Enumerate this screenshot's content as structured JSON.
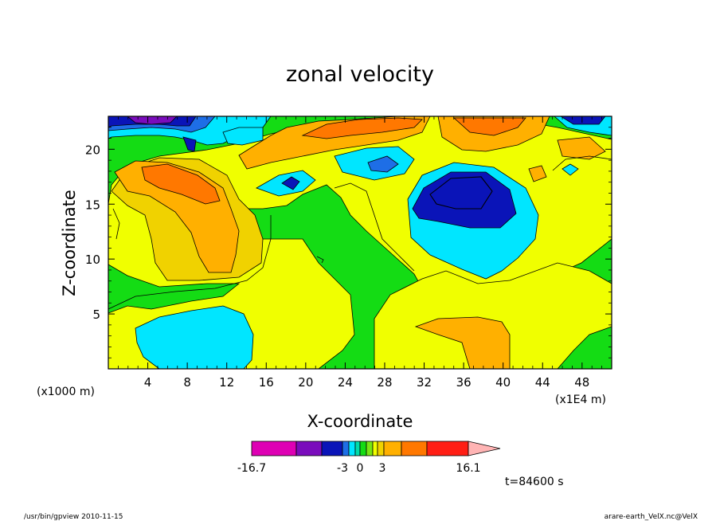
{
  "chart_data": {
    "type": "heatmap",
    "subtype": "filled contour",
    "title": "zonal velocity",
    "xlabel": "X-coordinate",
    "ylabel": "Z-coordinate",
    "x_unit": "(x1E4 m)",
    "y_unit": "(x1000 m)",
    "xlim": [
      0,
      51
    ],
    "ylim": [
      0,
      23
    ],
    "xticks": [
      4,
      8,
      12,
      16,
      20,
      24,
      28,
      32,
      36,
      40,
      44,
      48
    ],
    "yticks": [
      5,
      10,
      15,
      20
    ],
    "colorbar": {
      "levels": [
        -16.7,
        -12,
        -8.7,
        -5,
        -3,
        -2,
        -1,
        0,
        1,
        2,
        3,
        5,
        8,
        11,
        16.1
      ],
      "tick_labels": [
        "-16.7",
        "-3",
        "0",
        "3",
        "16.1"
      ],
      "colors": [
        "#de00b4",
        "#7a0cbc",
        "#0a14b8",
        "#1e6ee6",
        "#00e6ff",
        "#00dcaa",
        "#14dc14",
        "#78e614",
        "#f0ff00",
        "#f0d200",
        "#ffb000",
        "#ff7800",
        "#ff1e14",
        "#ff7878",
        "#ffb4b4"
      ],
      "extend": "max"
    },
    "regions": [
      {
        "label": "positive core upper-left",
        "level": 5,
        "center": [
          8,
          17
        ],
        "value": 5
      },
      {
        "label": "strong negative core",
        "level": -8.7,
        "center": [
          36,
          16
        ],
        "value": -9
      },
      {
        "label": "negative lobe",
        "level": -3,
        "center": [
          34,
          13
        ],
        "value": -3
      },
      {
        "label": "negative lobe lower-left",
        "level": -3,
        "center": [
          10,
          2.5
        ],
        "value": -3
      },
      {
        "label": "negative lobe mid-upper",
        "level": -3,
        "center": [
          26,
          19
        ],
        "value": -3
      },
      {
        "label": "negative top-left",
        "level": -12,
        "center": [
          4,
          22.5
        ],
        "value": -12
      },
      {
        "label": "positive top band",
        "level": 5,
        "center": [
          24,
          21.5
        ],
        "value": 5
      },
      {
        "label": "positive top right",
        "level": 5,
        "center": [
          36,
          21.5
        ],
        "value": 5
      },
      {
        "label": "positive bottom right",
        "level": 3,
        "center": [
          37,
          2.5
        ],
        "value": 3
      }
    ],
    "time_label": "t=84600 s"
  },
  "footer": {
    "left": "/usr/bin/gpview  2010-11-15",
    "right": "arare-earth_VelX.nc@VelX"
  }
}
